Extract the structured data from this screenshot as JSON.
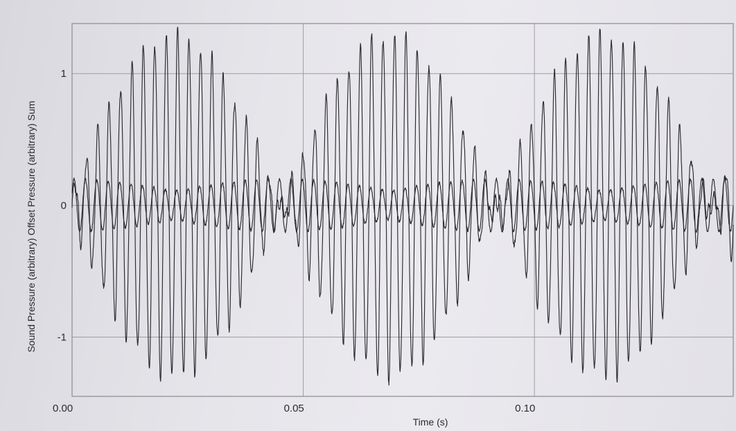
{
  "chart_data": {
    "type": "line",
    "xlabel": "Time (s)",
    "ylabel": "Sound Pressure (arbitrary)   Offset Pressure (arbitrary)   Sum",
    "xlim": [
      0.0,
      0.143
    ],
    "ylim": [
      -1.45,
      1.38
    ],
    "x_ticks": [
      {
        "value": 0.0,
        "label": "0.00"
      },
      {
        "value": 0.05,
        "label": "0.05"
      },
      {
        "value": 0.1,
        "label": "0.10"
      }
    ],
    "y_ticks": [
      {
        "value": 1,
        "label": "1"
      },
      {
        "value": 0,
        "label": "0"
      },
      {
        "value": -1,
        "label": "-1"
      }
    ],
    "grid": true,
    "series": [
      {
        "waveform": "sum",
        "carrier_frequency_hz": 405,
        "beat_frequency_hz": 21.5,
        "peak_amplitude": 1.3,
        "color": "#2b2b30"
      },
      {
        "waveform": "offset",
        "carrier_frequency_hz": 405,
        "peak_amplitude": 0.2,
        "color": "#2b2b30"
      }
    ],
    "colors": {
      "line": "#2b2b30",
      "grid": "#9d9da2",
      "frame": "#8a8a90"
    }
  }
}
